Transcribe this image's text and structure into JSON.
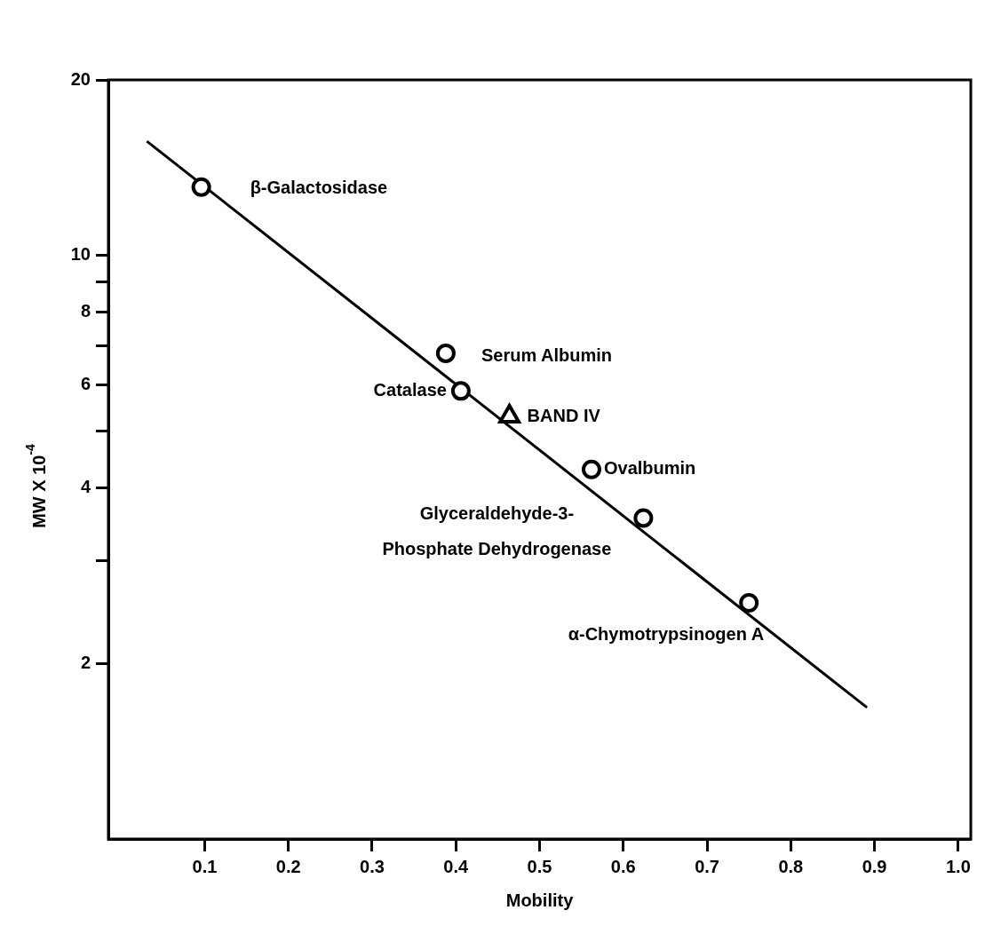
{
  "chart_data": {
    "type": "scatter",
    "xlabel": "Mobility",
    "ylabel": "MW X 10$^{-4}$",
    "xlim": [
      -0.015,
      1.015
    ],
    "xticks": [
      0.1,
      0.2,
      0.3,
      0.4,
      0.5,
      0.6,
      0.7,
      0.8,
      0.9,
      {
        "value": 1,
        "label": "1.0"
      }
    ],
    "ylim": [
      1,
      20
    ],
    "yticks": [
      2,
      {
        "value": 3,
        "label": null
      },
      4,
      {
        "value": 5,
        "label": null
      },
      6,
      {
        "value": 7,
        "label": null
      },
      8,
      {
        "value": 9,
        "label": null
      },
      10,
      20
    ],
    "log": "y",
    "grid": false,
    "legend": false,
    "series": [
      {
        "color": "#000000",
        "marker": "circle",
        "x": [
          0.096,
          0.388,
          0.406,
          0.562,
          0.624,
          0.75
        ],
        "values": [
          13.1,
          6.8,
          5.86,
          4.3,
          3.55,
          2.54
        ]
      },
      {
        "color": "#000000",
        "marker": "triangle",
        "x": [
          0.464
        ],
        "values": [
          5.3
        ]
      },
      {
        "type": "line",
        "color": "#000000",
        "marker": "none",
        "line_style": "solid",
        "x": [
          0.031,
          0.891
        ],
        "values": [
          15.7,
          1.68
        ]
      }
    ],
    "annotations": [
      {
        "text": "β-Galactosidase",
        "x": 0.096,
        "y": 13.1
      },
      {
        "text": "Serum Albumin",
        "x": 0.388,
        "y": 6.8
      },
      {
        "text": "Catalase",
        "x": 0.406,
        "y": 5.86
      },
      {
        "text": "BAND IV",
        "x": 0.464,
        "y": 5.3
      },
      {
        "text": "Ovalbumin",
        "x": 0.562,
        "y": 4.3
      },
      {
        "text": "Glyceraldehyde-3-\nPhosphate Dehydrogenase",
        "x": 0.624,
        "y": 3.55
      },
      {
        "text": "α-Chymotrypsinogen A",
        "x": 0.75,
        "y": 2.54
      }
    ]
  }
}
